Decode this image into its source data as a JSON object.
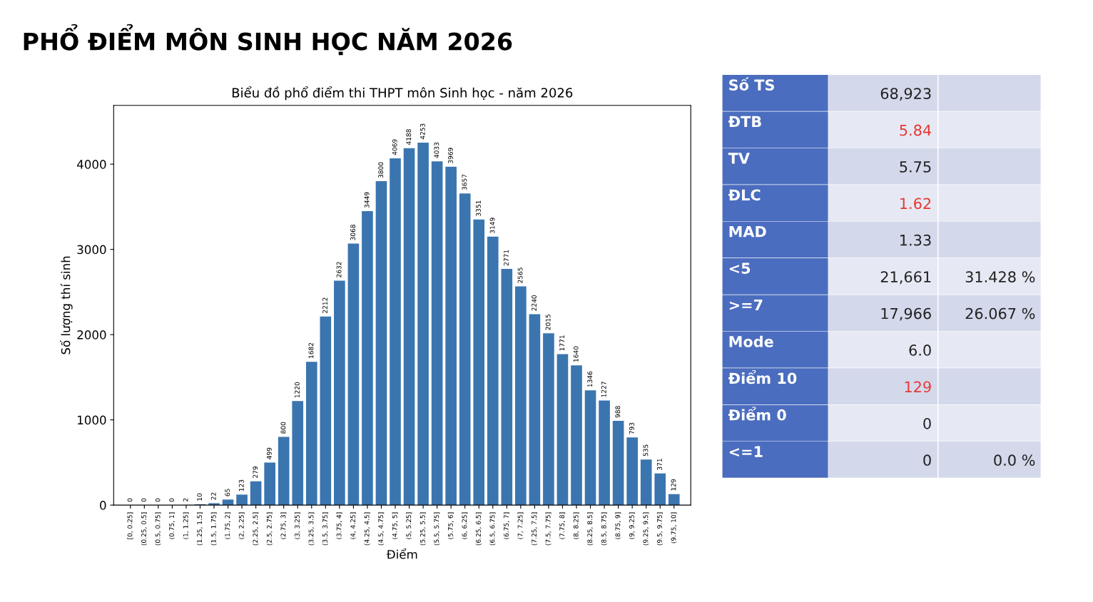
{
  "chart_data": [
    {
      "type": "bar",
      "title": "PHỔ ĐIỂM MÔN SINH HỌC NĂM 2026",
      "subtitle": "Biểu đồ phổ điểm thi THPT môn Sinh học - năm 2026",
      "xlabel": "Điểm",
      "ylabel": "Số lượng thí sinh",
      "categories": [
        "[0, 0.25]",
        "(0.25, 0.5]",
        "(0.5, 0.75]",
        "(0.75, 1]",
        "(1, 1.25]",
        "(1.25, 1.5]",
        "(1.5, 1.75]",
        "(1.75, 2]",
        "(2, 2.25]",
        "(2.25, 2.5]",
        "(2.5, 2.75]",
        "(2.75, 3]",
        "(3, 3.25]",
        "(3.25, 3.5]",
        "(3.5, 3.75]",
        "(3.75, 4]",
        "(4, 4.25]",
        "(4.25, 4.5]",
        "(4.5, 4.75]",
        "(4.75, 5]",
        "(5, 5.25]",
        "(5.25, 5.5]",
        "(5.5, 5.75]",
        "(5.75, 6]",
        "(6, 6.25]",
        "(6.25, 6.5]",
        "(6.5, 6.75]",
        "(6.75, 7]",
        "(7, 7.25]",
        "(7.25, 7.5]",
        "(7.5, 7.75]",
        "(7.75, 8]",
        "(8, 8.25]",
        "(8.25, 8.5]",
        "(8.5, 8.75]",
        "(8.75, 9]",
        "(9, 9.25]",
        "(9.25, 9.5]",
        "(9.5, 9.75]",
        "(9.75, 10]"
      ],
      "values": [
        0,
        0,
        0,
        0,
        2,
        10,
        22,
        65,
        123,
        279,
        499,
        800,
        1220,
        1682,
        2212,
        2632,
        3068,
        3449,
        3800,
        4069,
        4188,
        4253,
        4033,
        3969,
        3657,
        3351,
        3149,
        2771,
        2565,
        2240,
        2015,
        1771,
        1640,
        1346,
        1227,
        988,
        793,
        535,
        371,
        129
      ],
      "color": "#3b75af",
      "data_labels": true,
      "ylim": [
        0,
        4690
      ],
      "yticks": [
        0,
        1000,
        2000,
        3000,
        4000
      ],
      "grid": false,
      "legend": false
    },
    {
      "type": "other",
      "y_categories": [
        "Số TS",
        "ĐTB",
        "TV",
        "ĐLC",
        "MAD",
        "<5",
        ">=7",
        "Mode",
        "Điểm 10",
        "Điểm 0",
        "<=1"
      ],
      "cell_labels": [
        [
          "68,923",
          null
        ],
        [
          "5.84",
          null
        ],
        [
          "5.75",
          null
        ],
        [
          "1.62",
          null
        ],
        [
          "1.33",
          null
        ],
        [
          "21,661",
          "31.428 %"
        ],
        [
          "17,966",
          "26.067 %"
        ],
        [
          "6.0",
          null
        ],
        [
          "129",
          null
        ],
        [
          "0",
          null
        ],
        [
          "0",
          "0.0 %"
        ]
      ],
      "colors": [
        "#222222",
        "#e53935",
        "#222222",
        "#e53935",
        "#222222",
        "#222222",
        "#222222",
        "#222222",
        "#e53935",
        "#222222",
        "#222222"
      ]
    }
  ]
}
